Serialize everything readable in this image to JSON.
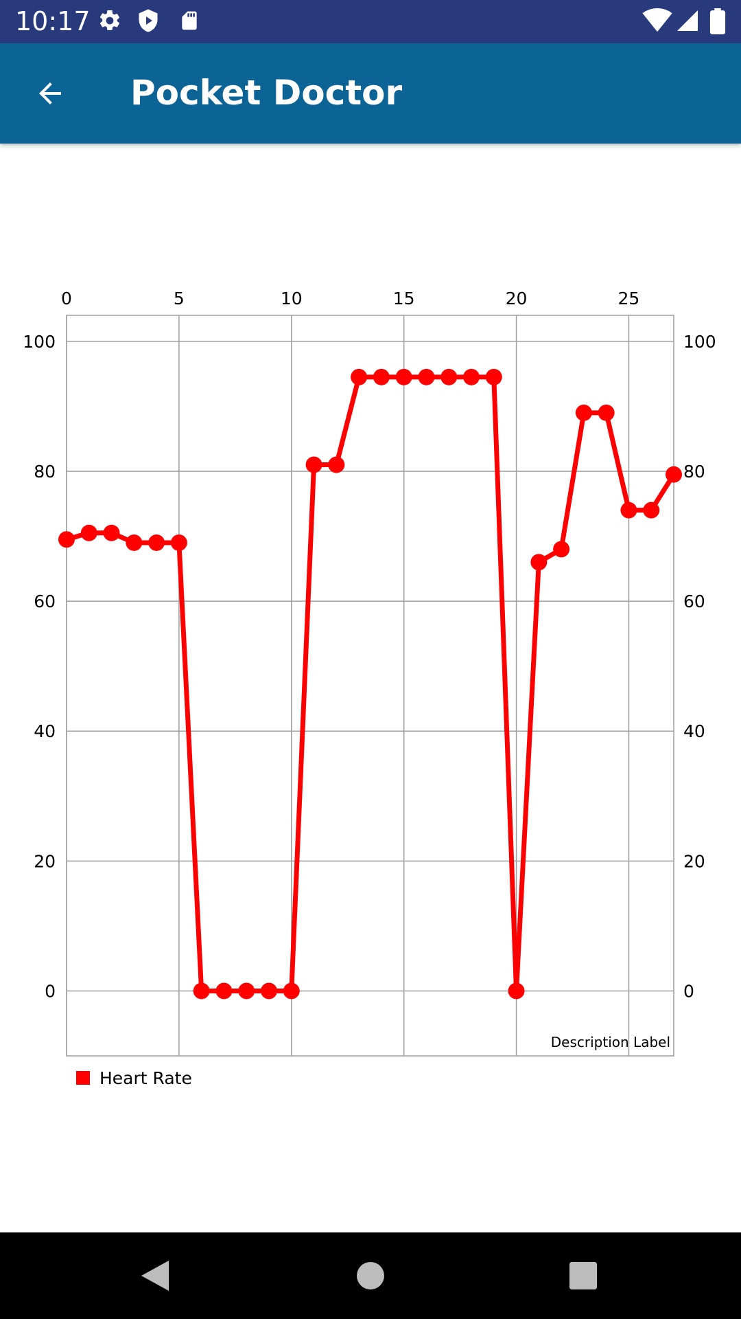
{
  "status_bar": {
    "time": "10:17",
    "left_icons": [
      "gear-icon",
      "shield-icon",
      "sd-card-icon"
    ],
    "right_icons": [
      "wifi-icon",
      "cell-signal-icon",
      "battery-icon"
    ]
  },
  "app_bar": {
    "title": "Pocket Doctor",
    "back_icon": "arrow-back-icon"
  },
  "chart_data": {
    "type": "line",
    "x": [
      0,
      1,
      2,
      3,
      4,
      5,
      6,
      7,
      8,
      9,
      10,
      11,
      12,
      13,
      14,
      15,
      16,
      17,
      18,
      19,
      20,
      21,
      22,
      23,
      24,
      25,
      26,
      27
    ],
    "series": [
      {
        "name": "Heart Rate",
        "color": "#ff0000",
        "values": [
          69.5,
          70.5,
          70.5,
          69,
          69,
          69,
          0,
          0,
          0,
          0,
          0,
          81,
          81,
          94.5,
          94.5,
          94.5,
          94.5,
          94.5,
          94.5,
          94.5,
          0,
          66,
          68,
          89,
          89,
          74,
          74,
          79.5
        ]
      }
    ],
    "xlim": [
      0,
      27
    ],
    "ylim": [
      -10,
      104
    ],
    "x_ticks": [
      "0",
      "5",
      "10",
      "15",
      "20",
      "25"
    ],
    "x_tick_values": [
      0,
      5,
      10,
      15,
      20,
      25
    ],
    "y_ticks": [
      "0",
      "20",
      "40",
      "60",
      "80",
      "100"
    ],
    "y_tick_values": [
      0,
      20,
      40,
      60,
      80,
      100
    ],
    "x_axis_position": "top",
    "y_axis_labels": "left-and-right",
    "grid": true,
    "legend": "bottom-left",
    "description": "Description Label"
  },
  "nav_bar": {
    "icons": [
      "back-triangle-icon",
      "home-circle-icon",
      "recents-square-icon"
    ]
  }
}
